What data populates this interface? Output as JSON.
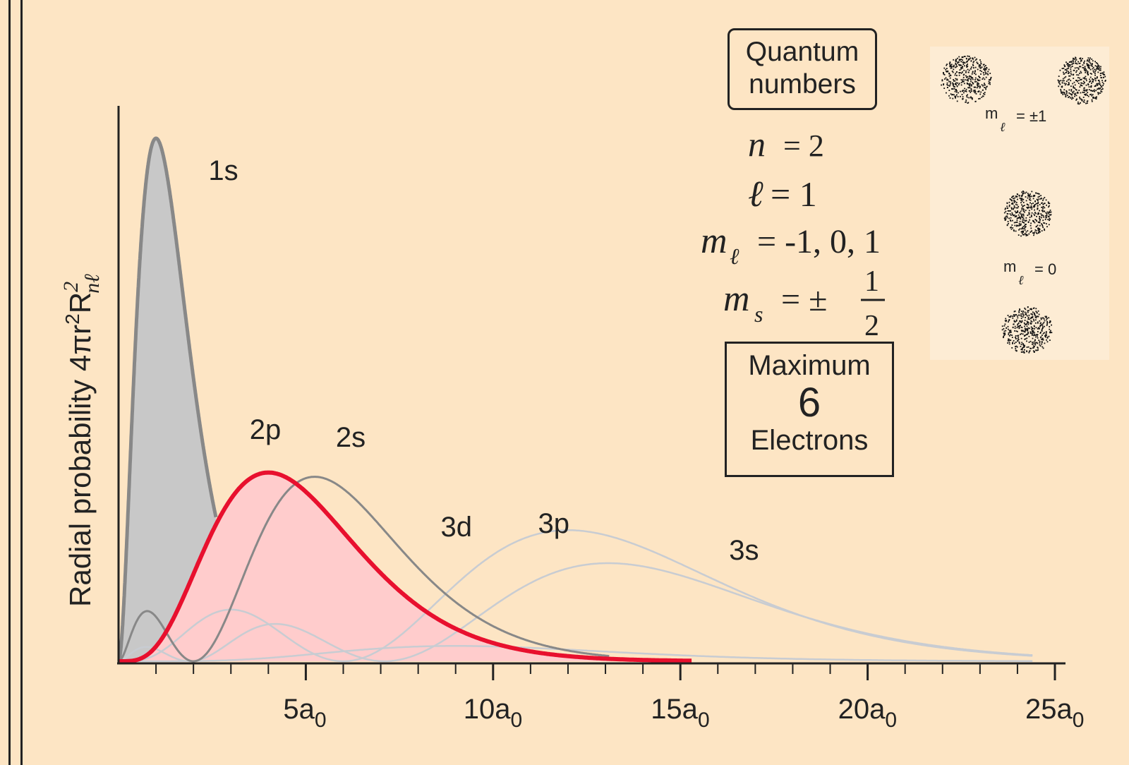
{
  "chart_data": {
    "type": "line",
    "title": "",
    "ylabel": "Radial probability 4πr²R²nℓ",
    "ylabel_parts": {
      "prefix": "Radial probability 4πr",
      "sq1": "2",
      "R": "R",
      "sub": "nℓ",
      "sq2": "2"
    },
    "xlabel": "",
    "xlim": [
      0,
      25
    ],
    "ticks": [
      {
        "main": "5a",
        "sub": "0",
        "value": 5
      },
      {
        "main": "10a",
        "sub": "0",
        "value": 10
      },
      {
        "main": "15a",
        "sub": "0",
        "value": 15
      },
      {
        "main": "20a",
        "sub": "0",
        "value": 20
      },
      {
        "main": "25a",
        "sub": "0",
        "value": 25
      }
    ],
    "series": [
      {
        "name": "1s",
        "n": 1,
        "l": 0,
        "color": "#888888",
        "fill": "#c8c8c8",
        "highlight": true
      },
      {
        "name": "2s",
        "n": 2,
        "l": 0,
        "color": "#888888",
        "highlight": false
      },
      {
        "name": "2p",
        "n": 2,
        "l": 1,
        "color": "#e8102e",
        "fill": "#ffcccc",
        "highlight": true
      },
      {
        "name": "3s",
        "n": 3,
        "l": 0,
        "color": "#c8ccd2",
        "highlight": false
      },
      {
        "name": "3p",
        "n": 3,
        "l": 1,
        "color": "#c8ccd2",
        "highlight": false
      },
      {
        "name": "3d",
        "n": 3,
        "l": 2,
        "color": "#c8ccd2",
        "highlight": false
      }
    ]
  },
  "quantum": {
    "title_line1": "Quantum",
    "title_line2": "numbers",
    "n_sym": "n",
    "n_val": "= 2",
    "l_sym": "ℓ",
    "l_val": "= 1",
    "ml_sym": "m",
    "ml_sub": "ℓ",
    "ml_val": "= -1, 0, 1",
    "ms_sym": "m",
    "ms_sub": "s",
    "ms_val": "= ±",
    "ms_num": "1",
    "ms_den": "2"
  },
  "max_box": {
    "line1": "Maximum",
    "line2": "6",
    "line3": "Electrons"
  },
  "inset": {
    "label_pm1": {
      "m": "m",
      "sub": "ℓ",
      "val": "= ±1"
    },
    "label_0": {
      "m": "m",
      "sub": "ℓ",
      "val": "= 0"
    }
  },
  "colors": {
    "background": "#fde5c4",
    "highlight": "#e8102e",
    "axis": "#222222"
  }
}
